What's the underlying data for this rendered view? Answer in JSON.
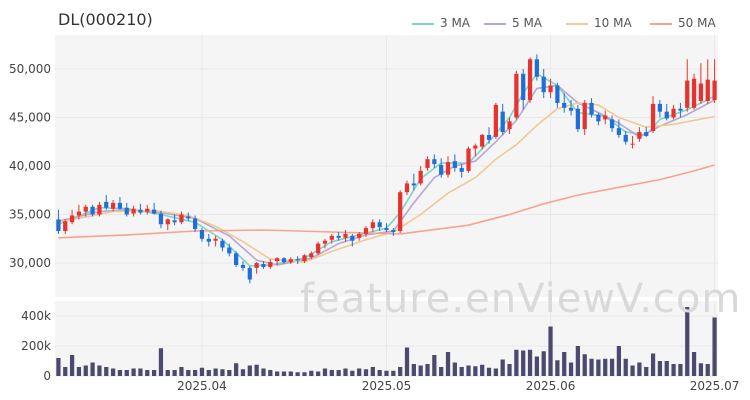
{
  "title": "DL(000210)",
  "watermark": "feature.enViewV.com",
  "legend": [
    {
      "label": "3 MA",
      "color": "#7fd3c9"
    },
    {
      "label": "5 MA",
      "color": "#b8a6d6"
    },
    {
      "label": "10 MA",
      "color": "#f2c894"
    },
    {
      "label": "50 MA",
      "color": "#f4a58f"
    }
  ],
  "colors": {
    "up": "#e8322d",
    "down": "#1f6fd6",
    "volume": "#4b4a6e",
    "grid": "#e9e9e9",
    "panel": "#f5f5f5"
  },
  "chart_data": {
    "type": "candlestick",
    "price_axis": {
      "ticks": [
        30000,
        35000,
        40000,
        45000,
        50000
      ],
      "ylim": [
        26500,
        53500
      ]
    },
    "volume_axis": {
      "ticks": [
        0,
        200000,
        400000
      ],
      "ylim": [
        0,
        500000
      ]
    },
    "x_ticks": [
      {
        "label": "2025.04",
        "index": 21
      },
      {
        "label": "2025.05",
        "index": 48
      },
      {
        "label": "2025.06",
        "index": 72
      },
      {
        "label": "2025.07",
        "index": 96
      }
    ],
    "candles": [
      [
        34500,
        35500,
        33000,
        33300
      ],
      [
        33300,
        34500,
        33000,
        34300
      ],
      [
        34200,
        35500,
        34000,
        34900
      ],
      [
        34900,
        36000,
        34500,
        35300
      ],
      [
        35300,
        36000,
        34800,
        35800
      ],
      [
        35800,
        36000,
        34800,
        35000
      ],
      [
        35000,
        36300,
        34800,
        36000
      ],
      [
        36300,
        37000,
        35500,
        35700
      ],
      [
        35600,
        36500,
        35300,
        36200
      ],
      [
        36200,
        36800,
        35500,
        35600
      ],
      [
        35700,
        36200,
        34800,
        35000
      ],
      [
        35100,
        35900,
        34800,
        35600
      ],
      [
        35500,
        36100,
        35000,
        35200
      ],
      [
        35300,
        36000,
        35000,
        35600
      ],
      [
        35500,
        36200,
        35000,
        35100
      ],
      [
        35100,
        35400,
        33600,
        34000
      ],
      [
        34000,
        34600,
        33400,
        34500
      ],
      [
        34400,
        35000,
        33900,
        34200
      ],
      [
        34200,
        35300,
        34000,
        35000
      ],
      [
        34800,
        35200,
        34300,
        34600
      ],
      [
        34600,
        34900,
        33200,
        33500
      ],
      [
        33400,
        33600,
        32200,
        32500
      ],
      [
        32500,
        33000,
        31700,
        32200
      ],
      [
        32300,
        32800,
        31700,
        32500
      ],
      [
        32300,
        32500,
        31200,
        31600
      ],
      [
        31600,
        32000,
        30700,
        31000
      ],
      [
        31000,
        31200,
        29600,
        29800
      ],
      [
        29800,
        30200,
        29200,
        29500
      ],
      [
        29500,
        29700,
        27900,
        28300
      ],
      [
        29500,
        30100,
        28900,
        30000
      ],
      [
        29900,
        30200,
        29400,
        29600
      ],
      [
        29600,
        30400,
        29400,
        30100
      ],
      [
        30200,
        30600,
        29800,
        30500
      ],
      [
        30500,
        30600,
        29900,
        30100
      ],
      [
        30100,
        30600,
        29900,
        30400
      ],
      [
        30400,
        30700,
        29900,
        30300
      ],
      [
        30200,
        30900,
        30000,
        30800
      ],
      [
        30600,
        31200,
        30400,
        31000
      ],
      [
        31000,
        32200,
        30800,
        32000
      ],
      [
        32000,
        32500,
        31500,
        32300
      ],
      [
        32400,
        33000,
        32000,
        32800
      ],
      [
        32800,
        33200,
        32300,
        32600
      ],
      [
        32600,
        33400,
        32200,
        33000
      ],
      [
        32800,
        33000,
        31700,
        32300
      ],
      [
        32600,
        33200,
        32300,
        33000
      ],
      [
        33000,
        33800,
        32700,
        33600
      ],
      [
        33600,
        34500,
        33200,
        34200
      ],
      [
        34200,
        34500,
        33300,
        33700
      ],
      [
        33600,
        34100,
        33200,
        33400
      ],
      [
        33400,
        33600,
        32800,
        33200
      ],
      [
        33300,
        37500,
        33100,
        37300
      ],
      [
        37300,
        38500,
        37000,
        38200
      ],
      [
        38200,
        39200,
        37500,
        38000
      ],
      [
        38200,
        40000,
        38000,
        39500
      ],
      [
        39800,
        41000,
        39500,
        40700
      ],
      [
        40700,
        41200,
        39800,
        40200
      ],
      [
        40100,
        40800,
        38800,
        39100
      ],
      [
        39100,
        41000,
        38800,
        40400
      ],
      [
        40500,
        41200,
        39400,
        39800
      ],
      [
        39800,
        40200,
        38800,
        39400
      ],
      [
        39500,
        42000,
        39300,
        41800
      ],
      [
        41800,
        42300,
        41000,
        42100
      ],
      [
        42000,
        43300,
        41700,
        43200
      ],
      [
        43200,
        44000,
        42300,
        42700
      ],
      [
        43000,
        46500,
        42800,
        46300
      ],
      [
        45600,
        46400,
        43200,
        43500
      ],
      [
        43800,
        45000,
        43300,
        44600
      ],
      [
        45000,
        49800,
        44800,
        49500
      ],
      [
        49500,
        50000,
        45800,
        46800
      ],
      [
        46800,
        51200,
        46500,
        51000
      ],
      [
        51000,
        51500,
        48800,
        49200
      ],
      [
        49200,
        50000,
        47000,
        47600
      ],
      [
        47600,
        49000,
        47000,
        48300
      ],
      [
        48300,
        48600,
        46000,
        46500
      ],
      [
        46500,
        47500,
        45500,
        46000
      ],
      [
        46000,
        46800,
        45200,
        45700
      ],
      [
        45900,
        46300,
        43500,
        43800
      ],
      [
        43800,
        46800,
        43200,
        46500
      ],
      [
        46500,
        47000,
        45000,
        45300
      ],
      [
        45300,
        45500,
        44200,
        44600
      ],
      [
        44800,
        45700,
        44300,
        45200
      ],
      [
        44800,
        45200,
        43500,
        43900
      ],
      [
        43900,
        44800,
        42900,
        43200
      ],
      [
        43200,
        43600,
        42200,
        42500
      ],
      [
        42300,
        43100,
        41800,
        42300
      ],
      [
        42800,
        44000,
        42500,
        43500
      ],
      [
        43500,
        44000,
        43000,
        43100
      ],
      [
        43600,
        47200,
        43400,
        46400
      ],
      [
        46400,
        46800,
        45000,
        45600
      ],
      [
        45600,
        46400,
        44700,
        44900
      ],
      [
        45000,
        46300,
        44800,
        45900
      ],
      [
        45900,
        46500,
        45000,
        45700
      ],
      [
        46000,
        51000,
        45600,
        48800
      ],
      [
        46000,
        49500,
        45800,
        49000
      ],
      [
        46700,
        50600,
        46400,
        48500
      ],
      [
        46700,
        51000,
        46400,
        48900
      ],
      [
        46800,
        51000,
        46500,
        48800
      ]
    ],
    "volume": [
      120000,
      60000,
      140000,
      60000,
      70000,
      90000,
      70000,
      60000,
      50000,
      40000,
      40000,
      50000,
      50000,
      40000,
      40000,
      185000,
      40000,
      40000,
      60000,
      40000,
      40000,
      55000,
      40000,
      50000,
      45000,
      40000,
      85000,
      45000,
      70000,
      75000,
      50000,
      40000,
      30000,
      30000,
      30000,
      25000,
      25000,
      35000,
      30000,
      50000,
      40000,
      40000,
      50000,
      35000,
      50000,
      45000,
      60000,
      40000,
      35000,
      35000,
      60000,
      190000,
      80000,
      70000,
      80000,
      140000,
      60000,
      160000,
      90000,
      60000,
      70000,
      65000,
      75000,
      55000,
      50000,
      110000,
      80000,
      175000,
      170000,
      175000,
      130000,
      165000,
      330000,
      105000,
      160000,
      90000,
      200000,
      145000,
      115000,
      110000,
      115000,
      115000,
      200000,
      115000,
      70000,
      90000,
      60000,
      150000,
      100000,
      100000,
      80000,
      80000,
      460000,
      160000,
      85000,
      80000,
      390000
    ],
    "moving_averages": [
      {
        "name": "3 MA",
        "values": [
          [
            0,
            34000
          ],
          [
            6,
            35700
          ],
          [
            10,
            35600
          ],
          [
            15,
            35000
          ],
          [
            20,
            34200
          ],
          [
            24,
            32400
          ],
          [
            28,
            29700
          ],
          [
            31,
            29800
          ],
          [
            36,
            30500
          ],
          [
            40,
            32200
          ],
          [
            44,
            32900
          ],
          [
            48,
            33600
          ],
          [
            50,
            35200
          ],
          [
            53,
            38700
          ],
          [
            56,
            40300
          ],
          [
            60,
            40300
          ],
          [
            63,
            42500
          ],
          [
            66,
            45000
          ],
          [
            68,
            47500
          ],
          [
            70,
            49500
          ],
          [
            73,
            48300
          ],
          [
            76,
            45500
          ],
          [
            80,
            45100
          ],
          [
            83,
            43500
          ],
          [
            86,
            43200
          ],
          [
            88,
            44800
          ],
          [
            92,
            45800
          ],
          [
            96,
            47200
          ]
        ]
      },
      {
        "name": "5 MA",
        "values": [
          [
            0,
            34300
          ],
          [
            6,
            35300
          ],
          [
            10,
            35500
          ],
          [
            15,
            35200
          ],
          [
            20,
            34600
          ],
          [
            25,
            32800
          ],
          [
            29,
            30300
          ],
          [
            32,
            29800
          ],
          [
            37,
            30500
          ],
          [
            41,
            32000
          ],
          [
            45,
            32900
          ],
          [
            49,
            33300
          ],
          [
            52,
            36200
          ],
          [
            55,
            38800
          ],
          [
            58,
            40000
          ],
          [
            61,
            40500
          ],
          [
            64,
            42500
          ],
          [
            67,
            44700
          ],
          [
            70,
            48000
          ],
          [
            73,
            48300
          ],
          [
            76,
            46500
          ],
          [
            79,
            45500
          ],
          [
            82,
            44400
          ],
          [
            85,
            43000
          ],
          [
            88,
            44100
          ],
          [
            92,
            45300
          ],
          [
            96,
            46800
          ]
        ]
      },
      {
        "name": "10 MA",
        "values": [
          [
            0,
            34200
          ],
          [
            8,
            35300
          ],
          [
            14,
            35400
          ],
          [
            19,
            34900
          ],
          [
            23,
            33800
          ],
          [
            27,
            32200
          ],
          [
            31,
            30400
          ],
          [
            36,
            30100
          ],
          [
            40,
            31200
          ],
          [
            45,
            32400
          ],
          [
            49,
            33200
          ],
          [
            53,
            35000
          ],
          [
            57,
            37200
          ],
          [
            61,
            38800
          ],
          [
            64,
            40700
          ],
          [
            67,
            42200
          ],
          [
            70,
            44200
          ],
          [
            73,
            45900
          ],
          [
            76,
            46500
          ],
          [
            79,
            46300
          ],
          [
            82,
            45000
          ],
          [
            86,
            44000
          ],
          [
            90,
            44300
          ],
          [
            96,
            45100
          ]
        ]
      },
      {
        "name": "50 MA",
        "values": [
          [
            0,
            32600
          ],
          [
            10,
            32900
          ],
          [
            20,
            33300
          ],
          [
            30,
            33400
          ],
          [
            40,
            33200
          ],
          [
            50,
            33000
          ],
          [
            60,
            33900
          ],
          [
            66,
            35000
          ],
          [
            71,
            36100
          ],
          [
            76,
            37000
          ],
          [
            82,
            37800
          ],
          [
            88,
            38600
          ],
          [
            93,
            39500
          ],
          [
            96,
            40100
          ]
        ]
      }
    ]
  }
}
